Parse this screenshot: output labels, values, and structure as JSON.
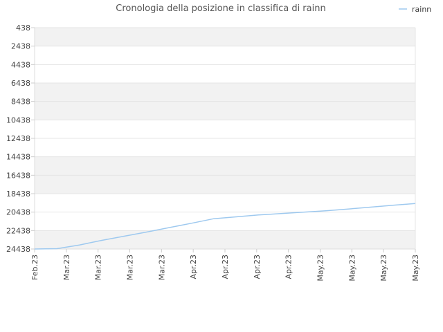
{
  "chart_data": {
    "type": "line",
    "title": "Cronologia della posizione in classifica di rainn",
    "legend": {
      "position": "top-right",
      "entries": [
        "rainn"
      ]
    },
    "y_inverted": true,
    "ylim": [
      438,
      24438
    ],
    "y_ticks": [
      438,
      2438,
      4438,
      6438,
      8438,
      10438,
      12438,
      14438,
      16438,
      18438,
      20438,
      22438,
      24438
    ],
    "y_tick_labels": [
      "438",
      "2438",
      "4438",
      "6438",
      "8438",
      "10438",
      "12438",
      "14438",
      "16438",
      "18438",
      "20438",
      "22438",
      "24438"
    ],
    "x_tick_labels": [
      "Feb.23",
      "Mar.23",
      "Mar.23",
      "Mar.23",
      "Mar.23",
      "Apr.23",
      "Apr.23",
      "Apr.23",
      "Apr.23",
      "May.23",
      "May.23",
      "May.23",
      "May.23"
    ],
    "grid": "horizontal alternating bands",
    "colors": {
      "series": "#9ec9ef",
      "band": "#f2f2f2",
      "grid": "#e4e4e4"
    },
    "series": [
      {
        "name": "rainn",
        "values": [
          24438,
          24400,
          24000,
          23500,
          23050,
          22600,
          22120,
          21650,
          21150,
          20950,
          20750,
          20600,
          20450,
          20300,
          20100,
          19900,
          19700,
          19500
        ]
      }
    ]
  }
}
